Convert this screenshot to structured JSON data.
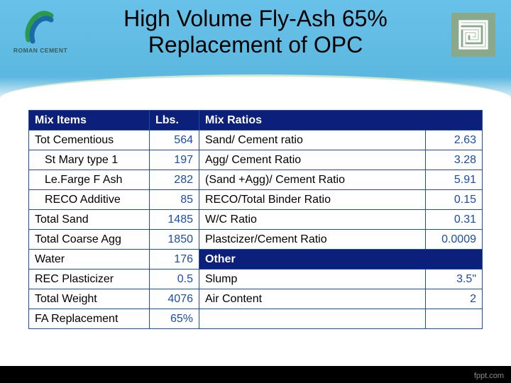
{
  "title_line1": "High Volume Fly-Ash 65%",
  "title_line2": "Replacement of OPC",
  "logo_left_text": "ROMAN CEMENT",
  "footer_text": "fppt.com",
  "headers": {
    "mix_items": "Mix Items",
    "lbs": "Lbs.",
    "mix_ratios": "Mix Ratios",
    "other": "Other"
  },
  "left_rows": [
    {
      "label": "Tot Cementious",
      "value": "564",
      "indent": false
    },
    {
      "label": "St Mary type 1",
      "value": "197",
      "indent": true
    },
    {
      "label": "Le.Farge F  Ash",
      "value": "282",
      "indent": true
    },
    {
      "label": "RECO Additive",
      "value": "85",
      "indent": true
    },
    {
      "label": "Total  Sand",
      "value": "1485",
      "indent": false
    },
    {
      "label": "Total Coarse Agg",
      "value": "1850",
      "indent": false
    },
    {
      "label": "Water",
      "value": "176",
      "indent": false
    },
    {
      "label": "REC Plasticizer",
      "value": "0.5",
      "indent": false
    },
    {
      "label": "Total Weight",
      "value": "4076",
      "indent": false
    },
    {
      "label": "FA Replacement",
      "value": "65%",
      "indent": false
    }
  ],
  "ratio_rows": [
    {
      "label": "Sand/ Cement ratio",
      "value": "2.63"
    },
    {
      "label": "Agg/ Cement Ratio",
      "value": "3.28"
    },
    {
      "label": "(Sand +Agg)/ Cement Ratio",
      "value": "5.91"
    },
    {
      "label": "RECO/Total Binder Ratio",
      "value": "0.15"
    },
    {
      "label": "W/C Ratio",
      "value": "0.31"
    },
    {
      "label": "Plastcizer/Cement Ratio",
      "value": "0.0009"
    }
  ],
  "other_rows": [
    {
      "label": "Slump",
      "value": "3.5\""
    },
    {
      "label": "Air Content",
      "value": "2"
    },
    {
      "label": "",
      "value": ""
    }
  ],
  "style": {
    "header_bg": "#0c1f7a",
    "header_text": "#ffffff",
    "border_color": "#1a4da8",
    "value_color": "#1a4da8",
    "label_color": "#000000",
    "page_bg_top": "#68c1e8",
    "table_font_size": 16,
    "title_font_size": 32,
    "slide_width": 720,
    "slide_height": 540
  }
}
